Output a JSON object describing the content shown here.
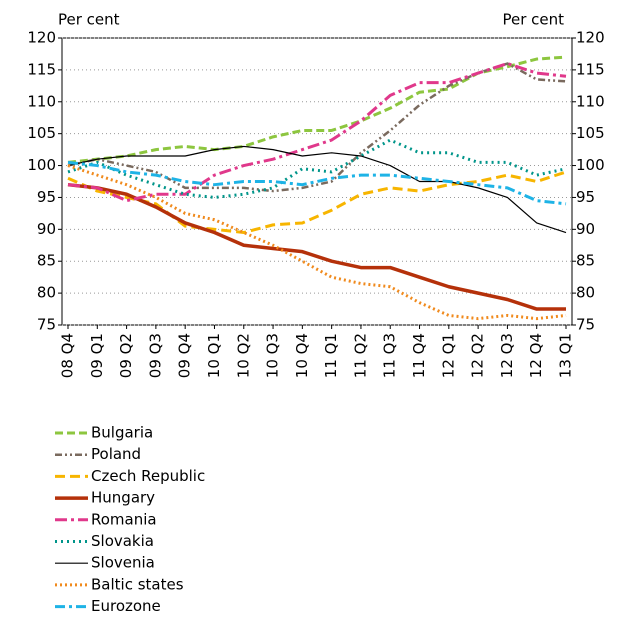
{
  "chart_data": {
    "type": "line",
    "ylabel": "Per cent",
    "y2label": "Per cent",
    "categories": [
      "08 Q4",
      "09 Q1",
      "09 Q2",
      "09 Q3",
      "09 Q4",
      "10 Q1",
      "10 Q2",
      "10 Q3",
      "10 Q4",
      "11 Q1",
      "11 Q2",
      "11 Q3",
      "11 Q4",
      "12 Q1",
      "12 Q2",
      "12 Q3",
      "12 Q4",
      "13 Q1"
    ],
    "ylim": [
      75,
      120
    ],
    "yticks": [
      75,
      80,
      85,
      90,
      95,
      100,
      105,
      110,
      115,
      120
    ],
    "y2lim": [
      75,
      120
    ],
    "y2ticks": [
      75,
      80,
      85,
      90,
      95,
      100,
      105,
      110,
      115,
      120
    ],
    "grid": true,
    "series": [
      {
        "name": "Bulgaria",
        "color": "#8dc63f",
        "values": [
          100.5,
          101,
          101.5,
          102.5,
          103,
          102.5,
          103,
          104.5,
          105.5,
          105.5,
          107,
          109,
          111.5,
          112,
          114.5,
          115.5,
          116.7,
          117
        ]
      },
      {
        "name": "Poland",
        "color": "#7a6a5e",
        "values": [
          100,
          101,
          100,
          99,
          96.5,
          96.5,
          96.5,
          96,
          96.5,
          97.5,
          102,
          105.5,
          109.5,
          112.5,
          114.5,
          116,
          113.5,
          113.2
        ]
      },
      {
        "name": "Czech Republic",
        "color": "#f7b500",
        "values": [
          98,
          96,
          95,
          94,
          90.5,
          90,
          89.5,
          90.7,
          91,
          93,
          95.5,
          96.5,
          96,
          97,
          97.5,
          98.5,
          97.5,
          99
        ]
      },
      {
        "name": "Hungary",
        "color": "#b5310a",
        "values": [
          97,
          96.5,
          95.5,
          93.5,
          91,
          89.5,
          87.5,
          87,
          86.5,
          85,
          84,
          84,
          82.5,
          81,
          80,
          79,
          77.5,
          77.5
        ]
      },
      {
        "name": "Romania",
        "color": "#e0388b",
        "values": [
          97,
          96.5,
          94.5,
          95.5,
          95.5,
          98.5,
          100,
          101,
          102.5,
          104,
          107,
          111,
          113,
          113,
          114.5,
          116,
          114.5,
          114
        ]
      },
      {
        "name": "Slovakia",
        "color": "#00958a",
        "values": [
          99,
          100.5,
          98.5,
          97,
          95.5,
          95,
          95.5,
          96.5,
          99.5,
          99,
          101.5,
          104,
          102,
          102,
          100.5,
          100.5,
          98.5,
          99.5
        ]
      },
      {
        "name": "Slovenia",
        "color": "#000000",
        "values": [
          100,
          101,
          101.5,
          101.5,
          101.5,
          102.5,
          103,
          102.5,
          101.5,
          102,
          101.5,
          100,
          97.5,
          97.5,
          96.5,
          95,
          91,
          89.5
        ]
      },
      {
        "name": "Baltic states",
        "color": "#f08a1d",
        "values": [
          100,
          98.5,
          97,
          95,
          92.5,
          91.5,
          89.5,
          87.5,
          85,
          82.5,
          81.5,
          81,
          78.5,
          76.5,
          76,
          76.5,
          76,
          76.5
        ]
      },
      {
        "name": "Eurozone",
        "color": "#1eb3e6",
        "values": [
          100.5,
          100,
          99,
          98.5,
          97.5,
          97,
          97.5,
          97.5,
          97,
          98,
          98.5,
          98.5,
          98,
          97.5,
          97,
          96.5,
          94.5,
          94
        ]
      }
    ]
  }
}
